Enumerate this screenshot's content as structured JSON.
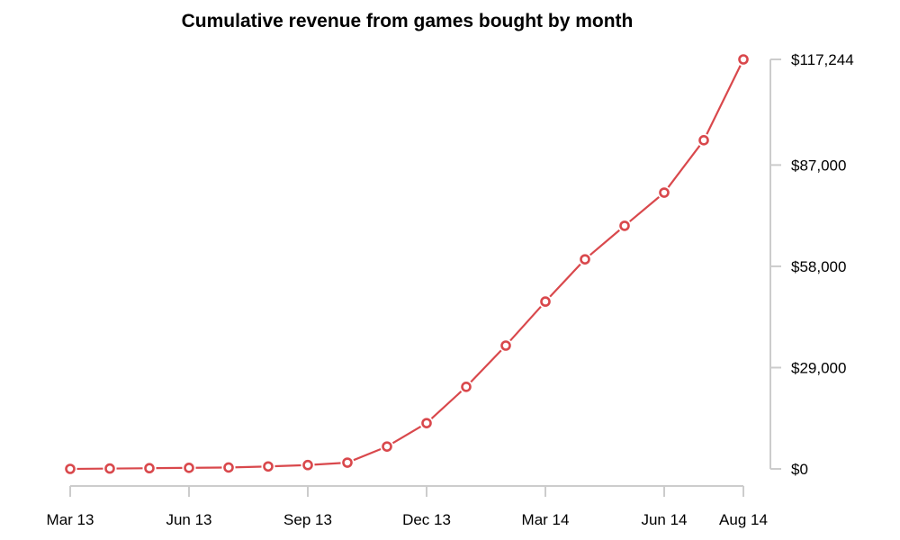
{
  "chart_data": {
    "type": "line",
    "title": "Cumulative revenue from games bought by month",
    "xlabel": "",
    "ylabel": "",
    "x": [
      "Mar 13",
      "Apr 13",
      "May 13",
      "Jun 13",
      "Jul 13",
      "Aug 13",
      "Sep 13",
      "Oct 13",
      "Nov 13",
      "Dec 13",
      "Jan 14",
      "Feb 14",
      "Mar 14",
      "Apr 14",
      "May 14",
      "Jun 14",
      "Jul 14",
      "Aug 14"
    ],
    "series": [
      {
        "name": "Cumulative revenue",
        "color": "#d9484c",
        "values": [
          0,
          100,
          200,
          300,
          400,
          700,
          1100,
          1800,
          6400,
          13100,
          23500,
          35300,
          47900,
          60000,
          69600,
          79100,
          94100,
          117244
        ]
      }
    ],
    "x_ticks": [
      {
        "index": 0,
        "label": "Mar 13"
      },
      {
        "index": 3,
        "label": "Jun 13"
      },
      {
        "index": 6,
        "label": "Sep 13"
      },
      {
        "index": 9,
        "label": "Dec 13"
      },
      {
        "index": 12,
        "label": "Mar 14"
      },
      {
        "index": 15,
        "label": "Jun 14"
      },
      {
        "index": 17,
        "label": "Aug 14"
      }
    ],
    "y_ticks": [
      {
        "value": 0,
        "label": "$0"
      },
      {
        "value": 29000,
        "label": "$29,000"
      },
      {
        "value": 58000,
        "label": "$58,000"
      },
      {
        "value": 87000,
        "label": "$87,000"
      },
      {
        "value": 117244,
        "label": "$117,244"
      }
    ],
    "ylim": [
      0,
      117244
    ],
    "y_axis_side": "right",
    "grid": false,
    "legend": "none"
  }
}
